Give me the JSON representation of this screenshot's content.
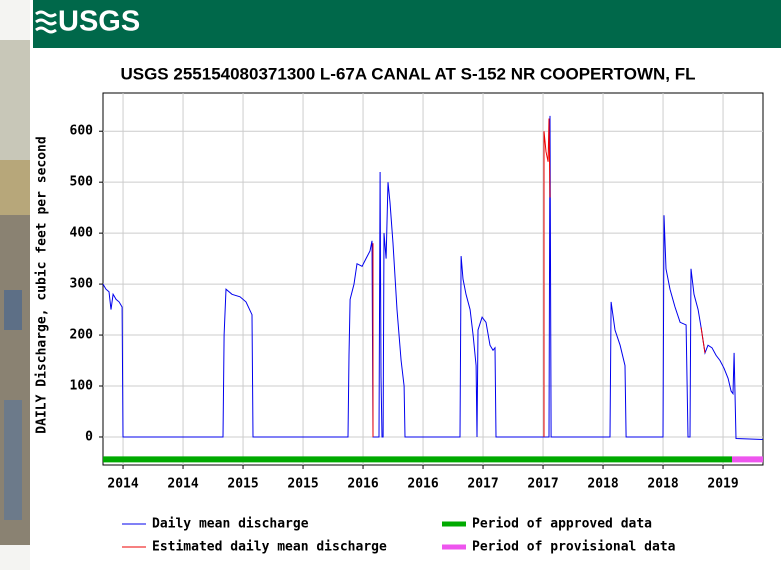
{
  "header": {
    "logo": "USGS"
  },
  "chart_data": {
    "type": "line",
    "title": "USGS 255154080371300 L-67A CANAL AT S-152 NR COOPERTOWN, FL",
    "y_label": "DAILY Discharge, cubic feet per second",
    "xlim": [
      2013.833,
      2019.333
    ],
    "ylim": [
      -55,
      675
    ],
    "xticks": [
      {
        "value": 2014,
        "label": "2014"
      },
      {
        "value": 2014.5,
        "label": "2014"
      },
      {
        "value": 2015,
        "label": "2015"
      },
      {
        "value": 2015.5,
        "label": "2015"
      },
      {
        "value": 2016,
        "label": "2016"
      },
      {
        "value": 2016.5,
        "label": "2016"
      },
      {
        "value": 2017,
        "label": "2017"
      },
      {
        "value": 2017.5,
        "label": "2017"
      },
      {
        "value": 2018,
        "label": "2018"
      },
      {
        "value": 2018.5,
        "label": "2018"
      },
      {
        "value": 2019,
        "label": "2019"
      }
    ],
    "yticks": [
      0,
      100,
      200,
      300,
      400,
      500,
      600
    ],
    "grid": true,
    "series": [
      {
        "name": "Daily mean discharge",
        "color": "#0000ee",
        "width": 1,
        "x": [
          2013.833,
          2013.858,
          2013.883,
          2013.9,
          2013.917,
          2013.942,
          2013.967,
          2013.992,
          2014.0,
          2014.833,
          2014.842,
          2014.858,
          2014.908,
          2014.975,
          2015.025,
          2015.075,
          2015.083,
          2015.875,
          2015.883,
          2015.892,
          2015.925,
          2015.95,
          2015.992,
          2016.025,
          2016.058,
          2016.075,
          2016.083,
          2016.133,
          2016.142,
          2016.15,
          2016.158,
          2016.167,
          2016.175,
          2016.192,
          2016.208,
          2016.225,
          2016.25,
          2016.283,
          2016.317,
          2016.342,
          2016.35,
          2016.808,
          2016.817,
          2016.833,
          2016.858,
          2016.892,
          2016.917,
          2016.942,
          2016.95,
          2016.958,
          2016.992,
          2017.025,
          2017.058,
          2017.083,
          2017.1,
          2017.108,
          2017.55,
          2017.558,
          2017.567,
          2018.058,
          2018.067,
          2018.1,
          2018.142,
          2018.183,
          2018.192,
          2018.5,
          2018.508,
          2018.525,
          2018.558,
          2018.6,
          2018.642,
          2018.692,
          2018.708,
          2018.725,
          2018.733,
          2018.758,
          2018.792,
          2018.817,
          2018.85,
          2018.875,
          2018.908,
          2018.942,
          2018.975,
          2019.008,
          2019.042,
          2019.067,
          2019.083,
          2019.092,
          2019.108,
          2019.333
        ],
        "values": [
          300,
          290,
          285,
          250,
          280,
          270,
          265,
          255,
          0,
          0,
          200,
          290,
          280,
          275,
          265,
          240,
          0,
          0,
          160,
          270,
          300,
          340,
          335,
          350,
          365,
          385,
          0,
          0,
          520,
          120,
          0,
          0,
          400,
          350,
          500,
          460,
          380,
          250,
          150,
          100,
          0,
          0,
          355,
          310,
          280,
          250,
          200,
          140,
          0,
          210,
          235,
          225,
          180,
          170,
          175,
          0,
          0,
          630,
          0,
          0,
          265,
          210,
          180,
          140,
          0,
          0,
          435,
          330,
          290,
          255,
          225,
          220,
          0,
          0,
          330,
          280,
          250,
          215,
          165,
          180,
          175,
          160,
          150,
          135,
          115,
          90,
          85,
          165,
          -3,
          -5
        ]
      },
      {
        "name": "Estimated daily mean discharge",
        "color": "#ee0000",
        "width": 1,
        "x": [
          2016.083,
          2016.083,
          2016.8,
          2017.508,
          2017.508,
          2017.525,
          2017.542,
          2017.55,
          2017.558,
          2018.2,
          2018.817,
          2018.833,
          2018.85
        ],
        "values": [
          380,
          0,
          null,
          0,
          600,
          560,
          540,
          625,
          470,
          null,
          215,
          190,
          165
        ]
      },
      {
        "name": "Period of approved data",
        "color": "#00aa00",
        "width": 6,
        "x": [
          2013.833,
          2019.075
        ],
        "values": [
          -44,
          -44
        ]
      },
      {
        "name": "Period of provisional data",
        "color": "#ee55ee",
        "width": 6,
        "x": [
          2019.075,
          2019.333
        ],
        "values": [
          -44,
          -44
        ]
      }
    ]
  }
}
